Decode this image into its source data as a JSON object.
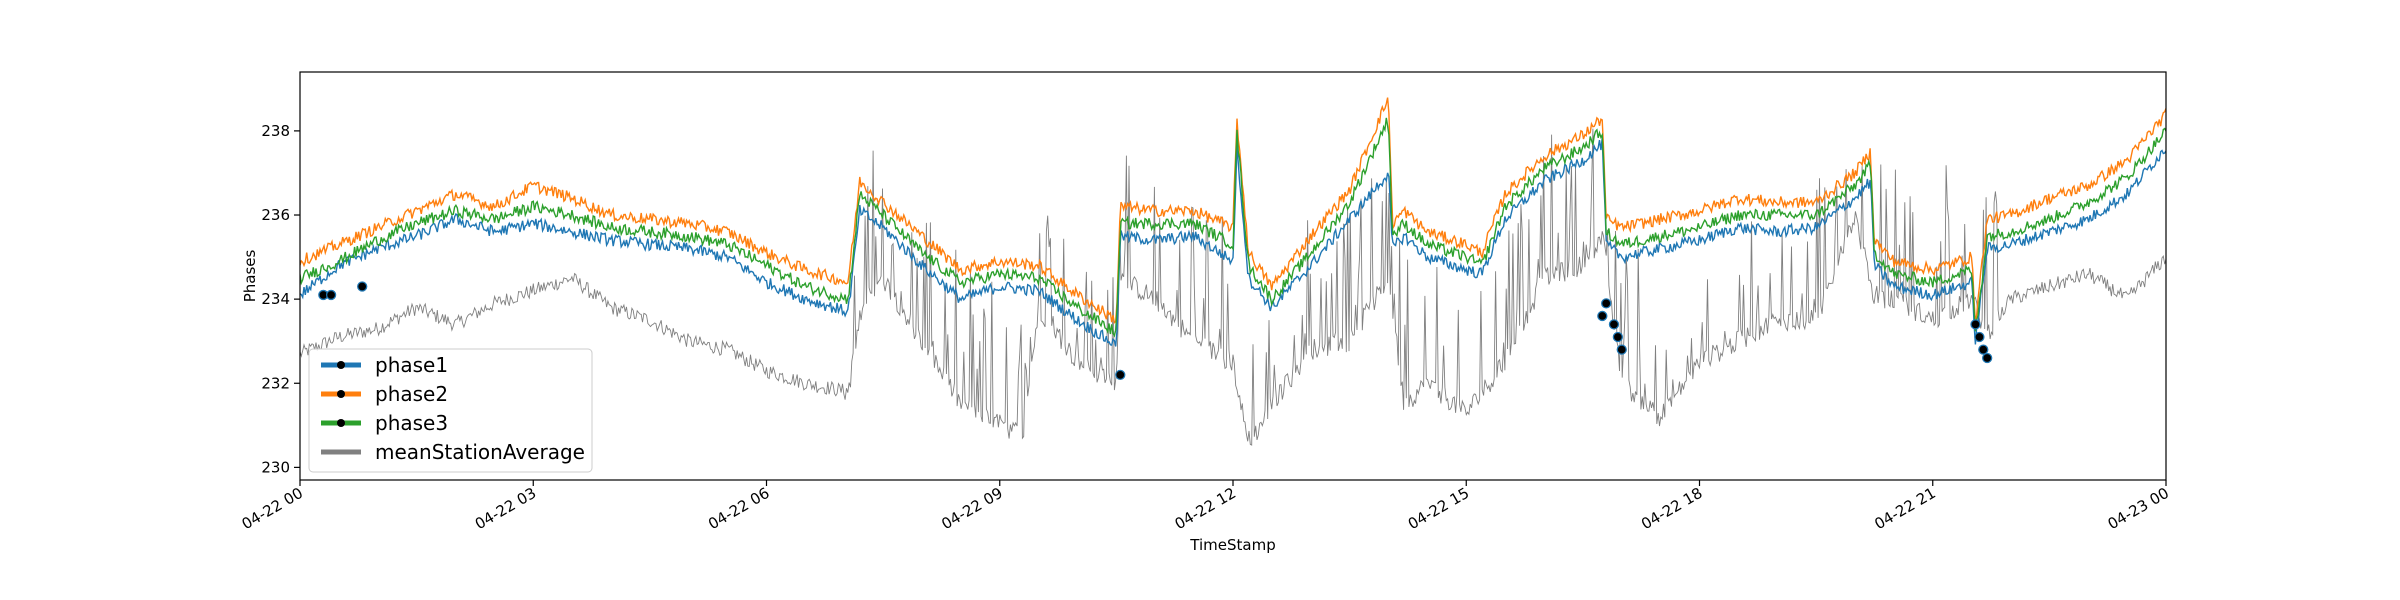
{
  "chart_data": {
    "type": "line",
    "title": "",
    "xlabel": "TimeStamp",
    "ylabel": "Phases",
    "x_range": [
      "04-22 00:00",
      "04-23 00:00"
    ],
    "ylim": [
      229.7,
      239.4
    ],
    "x_ticks": [
      {
        "hour": 0,
        "label": "04-22 00"
      },
      {
        "hour": 3,
        "label": "04-22 03"
      },
      {
        "hour": 6,
        "label": "04-22 06"
      },
      {
        "hour": 9,
        "label": "04-22 09"
      },
      {
        "hour": 12,
        "label": "04-22 12"
      },
      {
        "hour": 15,
        "label": "04-22 15"
      },
      {
        "hour": 18,
        "label": "04-22 18"
      },
      {
        "hour": 21,
        "label": "04-22 21"
      },
      {
        "hour": 24,
        "label": "04-23 00"
      }
    ],
    "y_ticks": [
      230,
      232,
      234,
      236,
      238
    ],
    "grid": false,
    "legend_position": "bottom-left",
    "series": [
      {
        "name": "phase1",
        "color": "#1f77b4",
        "x_hours": [
          0,
          0.5,
          1,
          1.5,
          2,
          2.5,
          3,
          3.5,
          4,
          4.5,
          5,
          5.5,
          6,
          6.5,
          7.05,
          7.2,
          7.5,
          8,
          8.5,
          9,
          9.5,
          10,
          10.5,
          10.55,
          11,
          11.5,
          12,
          12.05,
          12.2,
          12.5,
          13,
          13.5,
          14,
          14.05,
          14.2,
          14.5,
          15,
          15.2,
          15.5,
          16,
          16.5,
          16.75,
          16.8,
          17,
          17.5,
          18,
          18.5,
          19,
          19.5,
          20,
          20.2,
          20.25,
          20.5,
          21,
          21.5,
          21.55,
          21.7,
          22,
          22.5,
          23,
          23.5,
          24
        ],
        "values": [
          234.1,
          234.8,
          235.2,
          235.5,
          235.9,
          235.6,
          235.8,
          235.6,
          235.4,
          235.3,
          235.2,
          235.0,
          234.4,
          234.0,
          233.7,
          236.1,
          235.7,
          234.8,
          234.0,
          234.3,
          234.2,
          233.5,
          232.9,
          235.5,
          235.4,
          235.5,
          234.9,
          237.6,
          234.5,
          233.8,
          234.8,
          235.9,
          237.0,
          235.2,
          235.5,
          235.0,
          234.7,
          234.6,
          235.9,
          236.8,
          237.3,
          237.7,
          235.3,
          235.0,
          235.2,
          235.4,
          235.7,
          235.6,
          235.7,
          236.4,
          236.8,
          234.8,
          234.3,
          234.1,
          234.4,
          233.0,
          235.2,
          235.3,
          235.6,
          235.9,
          236.5,
          237.6
        ]
      },
      {
        "name": "phase2",
        "color": "#ff7f0e",
        "x_hours": [
          0,
          0.5,
          1,
          1.5,
          2,
          2.5,
          3,
          3.5,
          4,
          4.5,
          5,
          5.5,
          6,
          6.5,
          7.05,
          7.2,
          7.5,
          8,
          8.5,
          9,
          9.5,
          10,
          10.5,
          10.55,
          11,
          11.5,
          12,
          12.05,
          12.2,
          12.5,
          13,
          13.5,
          14,
          14.05,
          14.2,
          14.5,
          15,
          15.2,
          15.5,
          16,
          16.5,
          16.75,
          16.8,
          17,
          17.5,
          18,
          18.5,
          19,
          19.5,
          20,
          20.2,
          20.25,
          20.5,
          21,
          21.5,
          21.55,
          21.7,
          22,
          22.5,
          23,
          23.5,
          24
        ],
        "values": [
          234.9,
          235.3,
          235.7,
          236.1,
          236.5,
          236.2,
          236.7,
          236.4,
          236.0,
          235.9,
          235.8,
          235.6,
          235.1,
          234.7,
          234.4,
          236.8,
          236.3,
          235.5,
          234.7,
          234.9,
          234.8,
          234.1,
          233.5,
          236.2,
          236.1,
          236.1,
          235.7,
          238.3,
          235.1,
          234.3,
          235.5,
          236.6,
          238.8,
          235.8,
          236.1,
          235.6,
          235.3,
          235.1,
          236.5,
          237.4,
          237.9,
          238.3,
          235.9,
          235.7,
          235.9,
          236.1,
          236.4,
          236.3,
          236.3,
          237.0,
          237.5,
          235.4,
          234.9,
          234.7,
          235.0,
          233.5,
          235.9,
          236.0,
          236.4,
          236.7,
          237.3,
          238.4
        ]
      },
      {
        "name": "phase3",
        "color": "#2ca02c",
        "x_hours": [
          0,
          0.5,
          1,
          1.5,
          2,
          2.5,
          3,
          3.5,
          4,
          4.5,
          5,
          5.5,
          6,
          6.5,
          7.05,
          7.2,
          7.5,
          8,
          8.5,
          9,
          9.5,
          10,
          10.5,
          10.55,
          11,
          11.5,
          12,
          12.05,
          12.2,
          12.5,
          13,
          13.5,
          14,
          14.05,
          14.2,
          14.5,
          15,
          15.2,
          15.5,
          16,
          16.5,
          16.75,
          16.8,
          17,
          17.5,
          18,
          18.5,
          19,
          19.5,
          20,
          20.2,
          20.25,
          20.5,
          21,
          21.5,
          21.55,
          21.7,
          22,
          22.5,
          23,
          23.5,
          24
        ],
        "values": [
          234.5,
          234.9,
          235.4,
          235.8,
          236.1,
          235.9,
          236.2,
          236.0,
          235.7,
          235.6,
          235.5,
          235.3,
          234.8,
          234.3,
          234.0,
          236.5,
          236.0,
          235.1,
          234.4,
          234.6,
          234.5,
          233.8,
          233.2,
          235.8,
          235.8,
          235.8,
          235.3,
          238.0,
          234.8,
          234.0,
          235.1,
          236.3,
          238.3,
          235.5,
          235.8,
          235.3,
          235.0,
          234.8,
          236.2,
          237.1,
          237.6,
          238.0,
          235.6,
          235.3,
          235.5,
          235.7,
          236.0,
          236.0,
          236.0,
          236.7,
          237.2,
          235.1,
          234.6,
          234.4,
          234.7,
          233.2,
          235.5,
          235.6,
          235.9,
          236.3,
          236.9,
          238.0
        ]
      },
      {
        "name": "meanStationAverage",
        "color": "#808080",
        "x_hours": [
          0,
          0.5,
          1,
          1.5,
          2,
          2.5,
          3,
          3.5,
          4,
          4.5,
          5,
          5.5,
          6,
          6.5,
          7.05,
          7.2,
          7.5,
          8,
          8.5,
          9,
          9.3,
          9.5,
          10,
          10.5,
          10.55,
          11,
          11.5,
          12,
          12.2,
          12.5,
          13,
          13.5,
          14,
          14.2,
          14.5,
          15,
          15.5,
          16,
          16.5,
          16.75,
          17,
          17.5,
          18,
          18.5,
          19,
          19.5,
          20,
          20.25,
          20.5,
          21,
          21.5,
          21.7,
          22,
          22.5,
          23,
          23.5,
          24
        ],
        "values": [
          232.7,
          233.1,
          233.3,
          233.8,
          233.4,
          233.9,
          234.2,
          234.5,
          233.8,
          233.5,
          233.0,
          232.8,
          232.3,
          232.0,
          231.8,
          233.5,
          234.5,
          233.0,
          231.5,
          231.0,
          230.8,
          233.8,
          232.5,
          232.0,
          234.5,
          234.0,
          233.0,
          232.5,
          230.5,
          231.5,
          232.8,
          233.0,
          234.5,
          231.5,
          232.0,
          231.3,
          232.5,
          234.5,
          234.8,
          235.5,
          232.0,
          231.2,
          232.5,
          233.0,
          233.5,
          233.5,
          236.0,
          234.0,
          234.0,
          233.5,
          234.0,
          233.2,
          234.0,
          234.3,
          234.6,
          234.0,
          235.0
        ]
      }
    ],
    "highlighted_points": [
      {
        "hour": 0.3,
        "value": 234.1
      },
      {
        "hour": 0.4,
        "value": 234.1
      },
      {
        "hour": 0.8,
        "value": 234.3
      },
      {
        "hour": 10.55,
        "value": 232.2
      },
      {
        "hour": 16.75,
        "value": 233.6
      },
      {
        "hour": 16.8,
        "value": 233.9
      },
      {
        "hour": 16.9,
        "value": 233.4
      },
      {
        "hour": 16.95,
        "value": 233.1
      },
      {
        "hour": 17.0,
        "value": 232.8
      },
      {
        "hour": 21.55,
        "value": 233.4
      },
      {
        "hour": 21.6,
        "value": 233.1
      },
      {
        "hour": 21.65,
        "value": 232.8
      },
      {
        "hour": 21.7,
        "value": 232.6
      }
    ]
  }
}
